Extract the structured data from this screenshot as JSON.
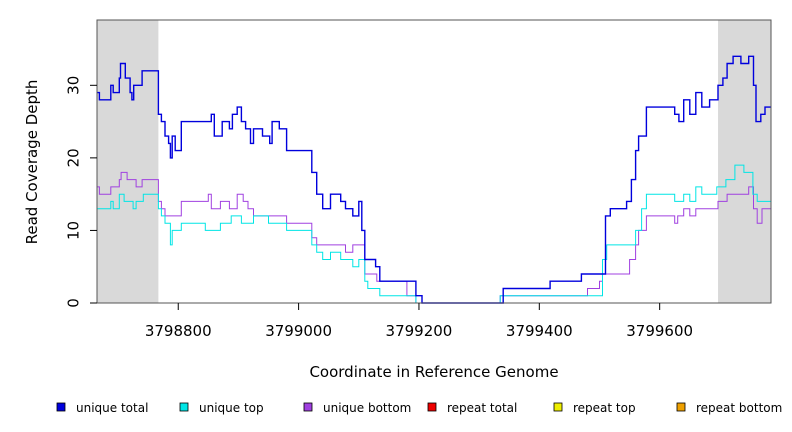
{
  "chart_data": {
    "type": "line",
    "title": "",
    "xlabel": "Coordinate in Reference Genome",
    "ylabel": "Read Coverage Depth",
    "xlim": [
      3798665,
      3799785
    ],
    "ylim": [
      0,
      39
    ],
    "x_ticks": [
      3798800,
      3799000,
      3799200,
      3799400,
      3799600
    ],
    "x_tick_labels": [
      "3798800",
      "3799000",
      "3799200",
      "3799400",
      "3799600"
    ],
    "y_ticks": [
      0,
      10,
      20,
      30
    ],
    "y_tick_labels": [
      "0",
      "10",
      "20",
      "30"
    ],
    "shaded_regions": [
      {
        "start": 3798665,
        "end": 3798767,
        "color": "#d9d9d9"
      },
      {
        "start": 3799697,
        "end": 3799785,
        "color": "#d9d9d9"
      }
    ],
    "legend_position": "bottom",
    "series": [
      {
        "name": "unique total",
        "color": "#0000dd",
        "points": [
          [
            3798665,
            29
          ],
          [
            3798669,
            28
          ],
          [
            3798688,
            30
          ],
          [
            3798692,
            29
          ],
          [
            3798702,
            31
          ],
          [
            3798704,
            33
          ],
          [
            3798712,
            31
          ],
          [
            3798720,
            29
          ],
          [
            3798723,
            28
          ],
          [
            3798726,
            30
          ],
          [
            3798740,
            32
          ],
          [
            3798765,
            32
          ],
          [
            3798767,
            26
          ],
          [
            3798772,
            25
          ],
          [
            3798778,
            23
          ],
          [
            3798784,
            22
          ],
          [
            3798787,
            20
          ],
          [
            3798790,
            23
          ],
          [
            3798795,
            21
          ],
          [
            3798805,
            25
          ],
          [
            3798855,
            26
          ],
          [
            3798860,
            23
          ],
          [
            3798873,
            25
          ],
          [
            3798885,
            24
          ],
          [
            3798890,
            26
          ],
          [
            3798898,
            27
          ],
          [
            3798905,
            25
          ],
          [
            3798912,
            24
          ],
          [
            3798920,
            22
          ],
          [
            3798925,
            24
          ],
          [
            3798940,
            23
          ],
          [
            3798952,
            22
          ],
          [
            3798956,
            25
          ],
          [
            3798968,
            24
          ],
          [
            3798980,
            21
          ],
          [
            3799022,
            18
          ],
          [
            3799030,
            15
          ],
          [
            3799040,
            13
          ],
          [
            3799053,
            15
          ],
          [
            3799070,
            14
          ],
          [
            3799078,
            13
          ],
          [
            3799090,
            12
          ],
          [
            3799100,
            14
          ],
          [
            3799105,
            10
          ],
          [
            3799110,
            6
          ],
          [
            3799128,
            5
          ],
          [
            3799135,
            3
          ],
          [
            3799180,
            3
          ],
          [
            3799195,
            1
          ],
          [
            3799205,
            0
          ],
          [
            3799335,
            0
          ],
          [
            3799340,
            2
          ],
          [
            3799418,
            3
          ],
          [
            3799470,
            4
          ],
          [
            3799510,
            12
          ],
          [
            3799518,
            13
          ],
          [
            3799545,
            14
          ],
          [
            3799553,
            17
          ],
          [
            3799560,
            21
          ],
          [
            3799565,
            23
          ],
          [
            3799578,
            27
          ],
          [
            3799625,
            26
          ],
          [
            3799632,
            25
          ],
          [
            3799640,
            28
          ],
          [
            3799650,
            26
          ],
          [
            3799660,
            29
          ],
          [
            3799670,
            27
          ],
          [
            3799683,
            28
          ],
          [
            3799697,
            30
          ],
          [
            3799705,
            31
          ],
          [
            3799712,
            33
          ],
          [
            3799722,
            34
          ],
          [
            3799735,
            33
          ],
          [
            3799748,
            34
          ],
          [
            3799756,
            30
          ],
          [
            3799760,
            25
          ],
          [
            3799768,
            26
          ],
          [
            3799775,
            27
          ],
          [
            3799785,
            27
          ]
        ]
      },
      {
        "name": "unique top",
        "color": "#00e5e5",
        "points": [
          [
            3798665,
            13
          ],
          [
            3798688,
            14
          ],
          [
            3798692,
            13
          ],
          [
            3798702,
            15
          ],
          [
            3798710,
            14
          ],
          [
            3798725,
            13
          ],
          [
            3798730,
            14
          ],
          [
            3798742,
            15
          ],
          [
            3798767,
            13
          ],
          [
            3798772,
            12
          ],
          [
            3798778,
            11
          ],
          [
            3798787,
            8
          ],
          [
            3798790,
            10
          ],
          [
            3798795,
            10
          ],
          [
            3798805,
            11
          ],
          [
            3798845,
            10
          ],
          [
            3798870,
            11
          ],
          [
            3798888,
            12
          ],
          [
            3798905,
            11
          ],
          [
            3798925,
            12
          ],
          [
            3798950,
            11
          ],
          [
            3798980,
            10
          ],
          [
            3799022,
            8
          ],
          [
            3799030,
            7
          ],
          [
            3799040,
            6
          ],
          [
            3799053,
            7
          ],
          [
            3799070,
            6
          ],
          [
            3799090,
            5
          ],
          [
            3799100,
            6
          ],
          [
            3799110,
            3
          ],
          [
            3799115,
            2
          ],
          [
            3799135,
            1
          ],
          [
            3799180,
            1
          ],
          [
            3799195,
            0
          ],
          [
            3799330,
            0
          ],
          [
            3799335,
            1
          ],
          [
            3799505,
            6
          ],
          [
            3799512,
            8
          ],
          [
            3799560,
            10
          ],
          [
            3799570,
            13
          ],
          [
            3799578,
            15
          ],
          [
            3799625,
            14
          ],
          [
            3799640,
            15
          ],
          [
            3799650,
            14
          ],
          [
            3799660,
            16
          ],
          [
            3799670,
            15
          ],
          [
            3799695,
            16
          ],
          [
            3799710,
            17
          ],
          [
            3799725,
            19
          ],
          [
            3799740,
            18
          ],
          [
            3799755,
            15
          ],
          [
            3799762,
            14
          ],
          [
            3799785,
            14
          ]
        ]
      },
      {
        "name": "unique bottom",
        "color": "#a040e0",
        "points": [
          [
            3798665,
            16
          ],
          [
            3798669,
            15
          ],
          [
            3798688,
            16
          ],
          [
            3798702,
            17
          ],
          [
            3798705,
            18
          ],
          [
            3798715,
            17
          ],
          [
            3798730,
            16
          ],
          [
            3798740,
            17
          ],
          [
            3798765,
            17
          ],
          [
            3798767,
            14
          ],
          [
            3798772,
            13
          ],
          [
            3798778,
            12
          ],
          [
            3798805,
            14
          ],
          [
            3798850,
            15
          ],
          [
            3798855,
            13
          ],
          [
            3798870,
            14
          ],
          [
            3798885,
            13
          ],
          [
            3798898,
            15
          ],
          [
            3798908,
            14
          ],
          [
            3798916,
            13
          ],
          [
            3798925,
            12
          ],
          [
            3798960,
            12
          ],
          [
            3798980,
            11
          ],
          [
            3799022,
            9
          ],
          [
            3799030,
            8
          ],
          [
            3799053,
            8
          ],
          [
            3799078,
            7
          ],
          [
            3799090,
            8
          ],
          [
            3799100,
            8
          ],
          [
            3799110,
            4
          ],
          [
            3799130,
            3
          ],
          [
            3799180,
            1
          ],
          [
            3799195,
            0
          ],
          [
            3799330,
            0
          ],
          [
            3799335,
            1
          ],
          [
            3799480,
            2
          ],
          [
            3799500,
            3
          ],
          [
            3799505,
            4
          ],
          [
            3799550,
            6
          ],
          [
            3799560,
            8
          ],
          [
            3799565,
            10
          ],
          [
            3799578,
            12
          ],
          [
            3799625,
            11
          ],
          [
            3799630,
            12
          ],
          [
            3799640,
            13
          ],
          [
            3799650,
            12
          ],
          [
            3799660,
            13
          ],
          [
            3799680,
            13
          ],
          [
            3799697,
            14
          ],
          [
            3799712,
            15
          ],
          [
            3799748,
            16
          ],
          [
            3799756,
            13
          ],
          [
            3799762,
            11
          ],
          [
            3799770,
            13
          ],
          [
            3799785,
            13
          ]
        ]
      },
      {
        "name": "repeat total",
        "color": "#ee0000",
        "points": [
          [
            3798665,
            0
          ],
          [
            3799785,
            0
          ]
        ]
      },
      {
        "name": "repeat top",
        "color": "#eeee00",
        "points": [
          [
            3798665,
            0
          ],
          [
            3799785,
            0
          ]
        ]
      },
      {
        "name": "repeat bottom",
        "color": "#eea000",
        "points": [
          [
            3798665,
            0
          ],
          [
            3799785,
            0
          ]
        ]
      }
    ]
  }
}
